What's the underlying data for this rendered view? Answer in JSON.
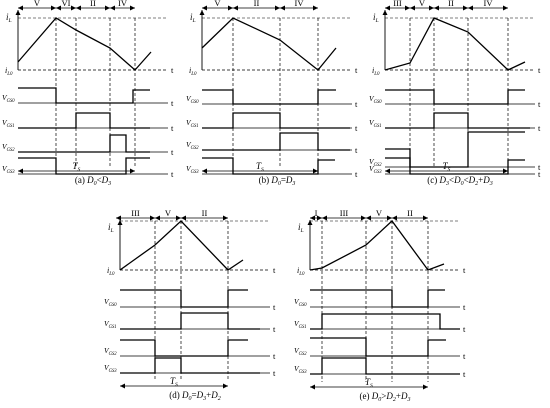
{
  "axis": {
    "iL_main": "i",
    "iL_sub": "L",
    "iL0_main": "i",
    "iL0_sub": "L0",
    "t": "t",
    "V_main": "V",
    "gs_subs": [
      "GS0",
      "GS1",
      "GS2",
      "GS3"
    ],
    "Ts_main": "T",
    "Ts_sub": "S"
  },
  "panels": [
    {
      "id": "a",
      "caption_prefix": "(a)",
      "caption_math": "D0<D3",
      "caption_parts": [
        {
          "t": "D",
          "i": true
        },
        {
          "t": "0",
          "sub": true,
          "i": true
        },
        {
          "t": "<",
          "i": false
        },
        {
          "t": "D",
          "i": true
        },
        {
          "t": "3",
          "sub": true,
          "i": true
        }
      ],
      "stage_labels": [
        "V",
        "VI",
        "II",
        "IV"
      ],
      "gs_levels": {
        "gs0": "high until interval-1 end, then low; high again from period end",
        "gs1": "low, high during stage II",
        "gs2": "low, high during stage IV",
        "gs3": "high during stages V and VI, then low, high again from period end"
      }
    },
    {
      "id": "b",
      "caption_prefix": "(b)",
      "caption_math": "D0=D3",
      "caption_parts": [
        {
          "t": "D",
          "i": true
        },
        {
          "t": "0",
          "sub": true,
          "i": true
        },
        {
          "t": "=",
          "i": false
        },
        {
          "t": "D",
          "i": true
        },
        {
          "t": "3",
          "sub": true,
          "i": true
        }
      ],
      "stage_labels": [
        "V",
        "II",
        "IV"
      ]
    },
    {
      "id": "c",
      "caption_prefix": "(c)",
      "caption_math": "D3<D0<D2+D3",
      "caption_parts": [
        {
          "t": "D",
          "i": true
        },
        {
          "t": "3",
          "sub": true,
          "i": true
        },
        {
          "t": "<",
          "i": false
        },
        {
          "t": "D",
          "i": true
        },
        {
          "t": "0",
          "sub": true,
          "i": true
        },
        {
          "t": "<",
          "i": false
        },
        {
          "t": "D",
          "i": true
        },
        {
          "t": "2",
          "sub": true,
          "i": true
        },
        {
          "t": "+",
          "i": false
        },
        {
          "t": "D",
          "i": true
        },
        {
          "t": "3",
          "sub": true,
          "i": true
        }
      ],
      "stage_labels": [
        "III",
        "V",
        "II",
        "IV"
      ]
    },
    {
      "id": "d",
      "caption_prefix": "(d)",
      "caption_math": "D0=D3+D2",
      "caption_parts": [
        {
          "t": "D",
          "i": true
        },
        {
          "t": "0",
          "sub": true,
          "i": true
        },
        {
          "t": "=",
          "i": false
        },
        {
          "t": "D",
          "i": true
        },
        {
          "t": "3",
          "sub": true,
          "i": true
        },
        {
          "t": "+",
          "i": false
        },
        {
          "t": "D",
          "i": true
        },
        {
          "t": "2",
          "sub": true,
          "i": true
        }
      ],
      "stage_labels": [
        "III",
        "V",
        "II"
      ]
    },
    {
      "id": "e",
      "caption_prefix": "(e)",
      "caption_math": "D0>D2+D3",
      "caption_parts": [
        {
          "t": "D",
          "i": true
        },
        {
          "t": "0",
          "sub": true,
          "i": true
        },
        {
          "t": ">",
          "i": false
        },
        {
          "t": "D",
          "i": true
        },
        {
          "t": "2",
          "sub": true,
          "i": true
        },
        {
          "t": "+",
          "i": false
        },
        {
          "t": "D",
          "i": true
        },
        {
          "t": "3",
          "sub": true,
          "i": true
        }
      ],
      "stage_labels": [
        "I",
        "III",
        "V",
        "II"
      ]
    }
  ]
}
